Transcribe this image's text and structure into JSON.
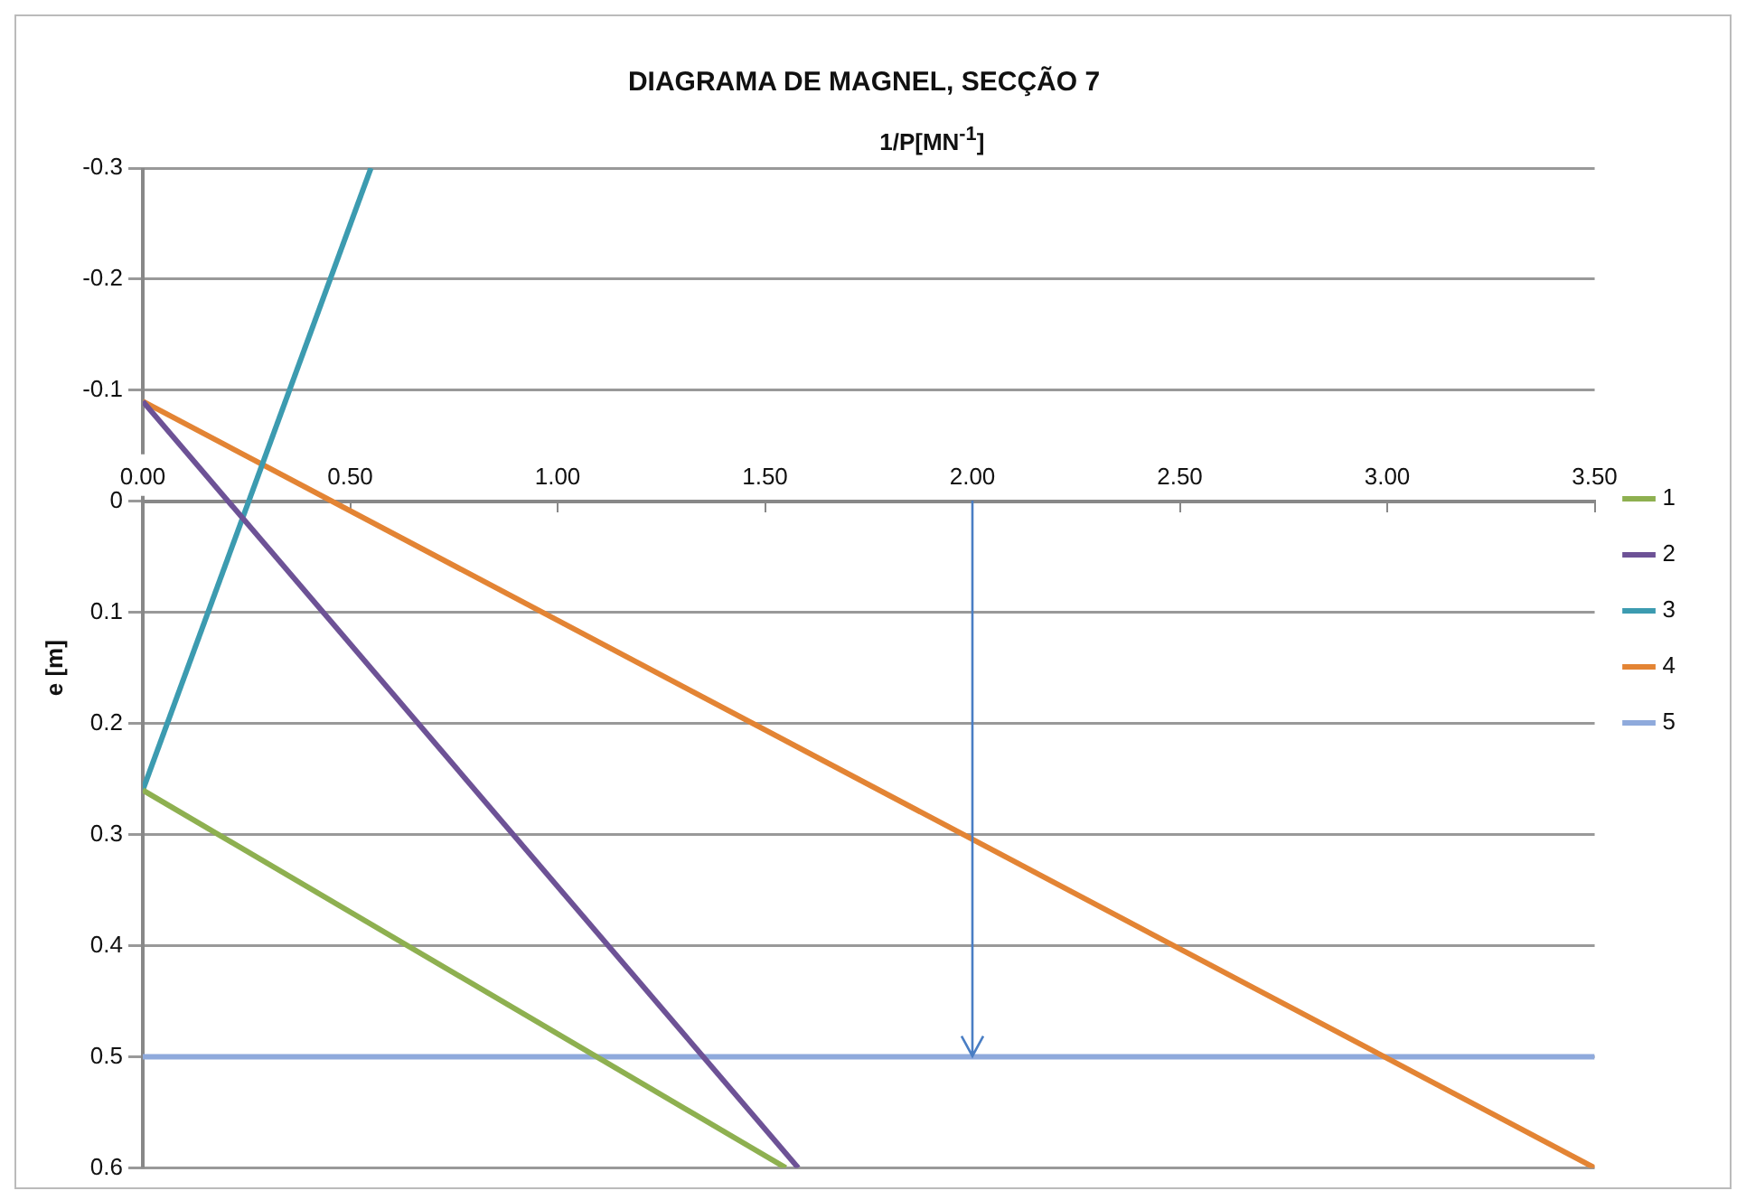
{
  "chart_data": {
    "type": "line",
    "title": "DIAGRAMA DE MAGNEL, SECÇÃO 7",
    "xlabel": "1/P[MN$^{-1}$]",
    "ylabel": "e [m]",
    "xlim": [
      0,
      3.5
    ],
    "xticks": [
      {
        "value": 0,
        "label": "0.00"
      },
      {
        "value": 0.5,
        "label": "0.50"
      },
      {
        "value": 1,
        "label": "1.00"
      },
      {
        "value": 1.5,
        "label": "1.50"
      },
      {
        "value": 2,
        "label": "2.00"
      },
      {
        "value": 2.5,
        "label": "2.50"
      },
      {
        "value": 3,
        "label": "3.00"
      },
      {
        "value": 3.5,
        "label": "3.50"
      }
    ],
    "ylim": [
      0.6,
      -0.3
    ],
    "yticks": [
      -0.3,
      -0.2,
      -0.1,
      0,
      0.1,
      0.2,
      0.3,
      0.4,
      0.5,
      0.6
    ],
    "series": [
      {
        "name": "1",
        "color": "#8eb050",
        "x": [
          0,
          1.55
        ],
        "values": [
          0.26,
          0.6
        ]
      },
      {
        "name": "2",
        "color": "#6d5296",
        "x": [
          0,
          1.58
        ],
        "values": [
          -0.09,
          0.6
        ]
      },
      {
        "name": "3",
        "color": "#3c9bb0",
        "x": [
          0,
          0.55
        ],
        "values": [
          0.26,
          -0.3
        ]
      },
      {
        "name": "4",
        "color": "#e38434",
        "x": [
          0,
          3.5
        ],
        "values": [
          -0.09,
          0.6
        ]
      },
      {
        "name": "5",
        "color": "#8faadc",
        "x": [
          0,
          3.5
        ],
        "values": [
          0.5,
          0.5
        ]
      }
    ],
    "grid": "y",
    "legend": "right",
    "marker": "none",
    "line_style": "solid"
  }
}
